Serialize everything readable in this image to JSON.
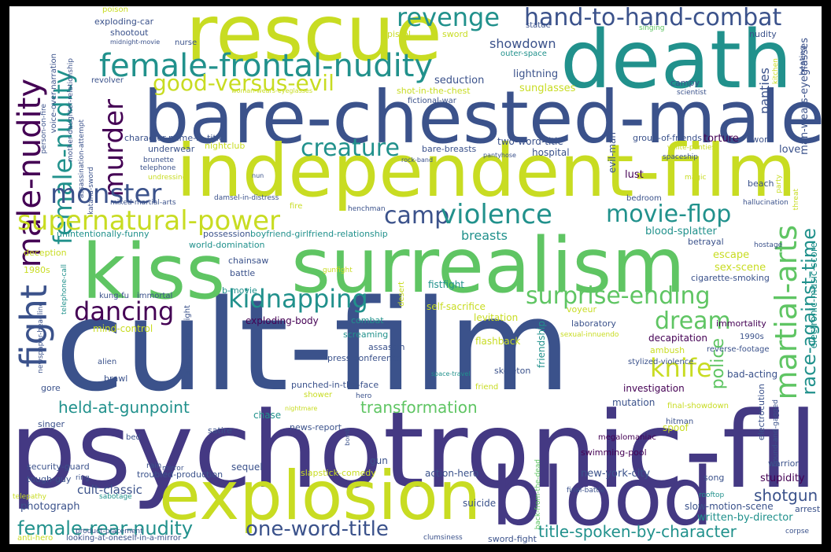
{
  "palette": {
    "yellow_green": "#c8dc22",
    "green": "#5fc563",
    "teal": "#21918c",
    "blue": "#3b528b",
    "indigo": "#443983",
    "purple": "#440154",
    "background": "#ffffff",
    "frame": "#000000"
  },
  "words": {
    "cult_film": "cult-film",
    "psychotronic_film": "psychotronic-film",
    "bare_chested_male": "bare-chested-male",
    "independent_film": "independent-film",
    "death": "death",
    "rescue": "rescue",
    "surrealism": "surrealism",
    "kiss": "kiss",
    "blood": "blood",
    "explosion": "explosion",
    "fight": "fight",
    "female_frontal_nudity": "female-frontal-nudity",
    "hand_to_hand_combat": "hand-to-hand-combat",
    "revenge": "revenge",
    "good_versus_evil": "good-versus-evil",
    "male_nudity": "male-nudity",
    "female_nudity": "female-nudity",
    "murder": "murder",
    "monster": "monster",
    "creature": "creature",
    "supernatural_power": "supernatural-power",
    "camp": "camp",
    "violence": "violence",
    "movie_flop": "movie-flop",
    "martial_arts": "martial-arts",
    "race_against_time": "race-against-time",
    "dancing": "dancing",
    "kidnapping": "kidnapping",
    "surprise_ending": "surprise-ending",
    "dream": "dream",
    "knife": "knife",
    "held_at_gunpoint": "held-at-gunpoint",
    "transformation": "transformation",
    "female_rear_nudity": "female-rear-nudity",
    "one_word_title": "one-word-title",
    "title_spoken_by_character": "title-spoken-by-character",
    "shotgun": "shotgun",
    "police": "police",
    "showdown": "showdown",
    "panties": "panties",
    "breasts": "breasts",
    "seduction": "seduction",
    "lightning": "lightning",
    "sunglasses": "sunglasses",
    "torture": "torture",
    "group_of_friends": "group-of-friends",
    "two_word_title": "two-word-title",
    "hospital": "hospital",
    "evil_man": "evil-man",
    "lust": "lust",
    "love": "love",
    "beach": "beach",
    "bedroom": "bedroom",
    "blood_splatter": "blood-splatter",
    "escape": "escape",
    "sex_scene": "sex-scene",
    "betrayal": "betrayal",
    "cigarette_smoking": "cigarette-smoking",
    "electronic_music_score": "electronic-music-score",
    "immortality": "immortality",
    "decapitation": "decapitation",
    "reverse_footage": "reverse-footage",
    "stylized_violence": "stylized-violence",
    "bad_acting": "bad-acting",
    "investigation": "investigation",
    "mutation": "mutation",
    "final_showdown": "final-showdown",
    "hitman": "hitman",
    "electrocution": "electrocution",
    "bound_and_gagged": "bound-and-gagged",
    "spoof": "spoof",
    "megalomaniac": "megalomaniac",
    "swimming_pool": "swimming-pool",
    "warrior": "warrior",
    "arrest": "arrest",
    "new_york_city": "new-york-city",
    "song": "song",
    "stupidity": "stupidity",
    "final_battle": "final-battle",
    "back_from_the_dead": "back-from-the-dead",
    "rooftop": "rooftop",
    "slow_motion_scene": "slow-motion-scene",
    "written_by_director": "written-by-director",
    "corpse": "corpse",
    "sword_fight": "sword-fight",
    "suicide": "suicide",
    "action_hero": "action-hero",
    "cult_classic": "cult-classic",
    "photograph": "photograph",
    "troubled_production": "troubled-production",
    "sequel": "sequel",
    "gun": "gun",
    "slapstick_comedy": "slapstick-comedy",
    "sabotage": "sabotage",
    "product_placement": "product-placement",
    "anti_hero": "anti-hero",
    "looking_at_oneself_in_a_mirror": "looking-at-oneself-in-a-mirror",
    "telepathy": "telepathy",
    "tough_guy": "tough-guy",
    "ring": "ring",
    "mirror": "mirror",
    "rain": "rain",
    "security_guard": "security-guard",
    "bomb": "bomb",
    "satire": "satire",
    "bed": "bed",
    "chase": "chase",
    "news_report": "news-report",
    "singer": "singer",
    "gore": "gore",
    "brawl": "brawl",
    "alien": "alien",
    "nightmare": "nightmare",
    "shower": "shower",
    "hero": "hero",
    "punched_in_the_face": "punched-in-the-face",
    "friend": "friend",
    "skeleton": "skeleton",
    "space_travel": "space-travel",
    "press_conference": "press-conference",
    "assassin": "assassin",
    "screaming": "screaming",
    "flashback": "flashback",
    "friendship": "friendship",
    "sexual_innuendo": "sexual-innuendo",
    "ambush": "ambush",
    "1990s": "1990s",
    "laboratory": "laboratory",
    "voyeur": "voyeur",
    "levitation": "levitation",
    "self_sacrifice": "self-sacrifice",
    "fistfight": "fistfight",
    "gunfight": "gunfight",
    "desert": "desert",
    "combat": "combat",
    "exploding_body": "exploding-body",
    "b_movie": "b-movie",
    "mind_control": "mind-control",
    "falling_from_height": "falling-from-height",
    "immortal": "immortal",
    "kung_fu": "kung-fu",
    "newspaper_headline": "newspaper-headline",
    "telephone_call": "telephone-call",
    "1980s": "1980s",
    "deception": "deception",
    "battle": "battle",
    "chainsaw": "chainsaw",
    "world_domination": "world-domination",
    "unintentionally_funny": "unintentionally-funny",
    "possession": "possession",
    "boyfriend_girlfriend_relationship": "boyfriend-girlfriend-relationship",
    "henchman": "henchman",
    "fire": "fire",
    "damsel_in_distress": "damsel-in-distress",
    "mixed_martial_arts": "mixed-martial-arts",
    "hostage": "hostage",
    "hallucination": "hallucination",
    "threat": "threat",
    "party": "party",
    "magic": "magic",
    "spaceship": "spaceship",
    "white_panties": "white-panties",
    "f_word": "f-word",
    "scientist": "scientist",
    "campy": "campy",
    "man_wears_eyeglasses": "man-wears-eyeglasses",
    "beating": "beating",
    "kitchen": "kitchen",
    "nudity": "nudity",
    "singing": "singing",
    "statue": "statue",
    "outer_space": "outer-space",
    "sword": "sword",
    "pistol": "pistol",
    "shot_in_the_chest": "shot-in-the-chest",
    "fictional_war": "fictional-war",
    "woman_wears_eyeglasses": "woman-wears-eyeglasses",
    "bare_breasts": "bare-breasts",
    "pantyhose": "pantyhose",
    "rock_band": "rock-band",
    "clumsiness": "clumsiness",
    "nightclub": "nightclub",
    "nun": "nun",
    "underwear": "underwear",
    "character_name_in_title": "character-name-in-title",
    "brunette": "brunette",
    "telephone": "telephone",
    "undressing": "undressing",
    "katana_sword": "katana-sword",
    "assassination_attempt": "assassination-attempt",
    "mother_daughter_relationship": "mother-daughter-relationship",
    "voice_over_narration": "voice-over-narration",
    "person_on_fire": "person-on-fire",
    "revolver": "revolver",
    "nurse": "nurse",
    "midnight_movie": "midnight-movie",
    "shootout": "shootout",
    "exploding_car": "exploding-car",
    "poison": "poison"
  }
}
